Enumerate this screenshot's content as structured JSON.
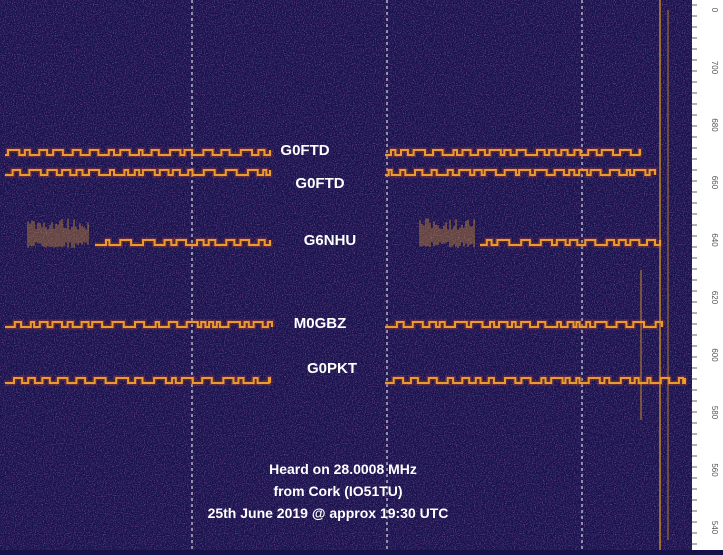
{
  "signals": [
    {
      "label": "G0FTD"
    },
    {
      "label": "G0FTD"
    },
    {
      "label": "G6NHU"
    },
    {
      "label": "M0GBZ"
    },
    {
      "label": "G0PKT"
    }
  ],
  "caption": [
    "Heard on 28.0008 MHz",
    "from Cork (IO51TU)",
    "25th June 2019 @ approx 19:30 UTC"
  ],
  "scale_labels": [
    "0",
    "700",
    "680",
    "660",
    "640",
    "620",
    "600",
    "580",
    "560",
    "540"
  ]
}
